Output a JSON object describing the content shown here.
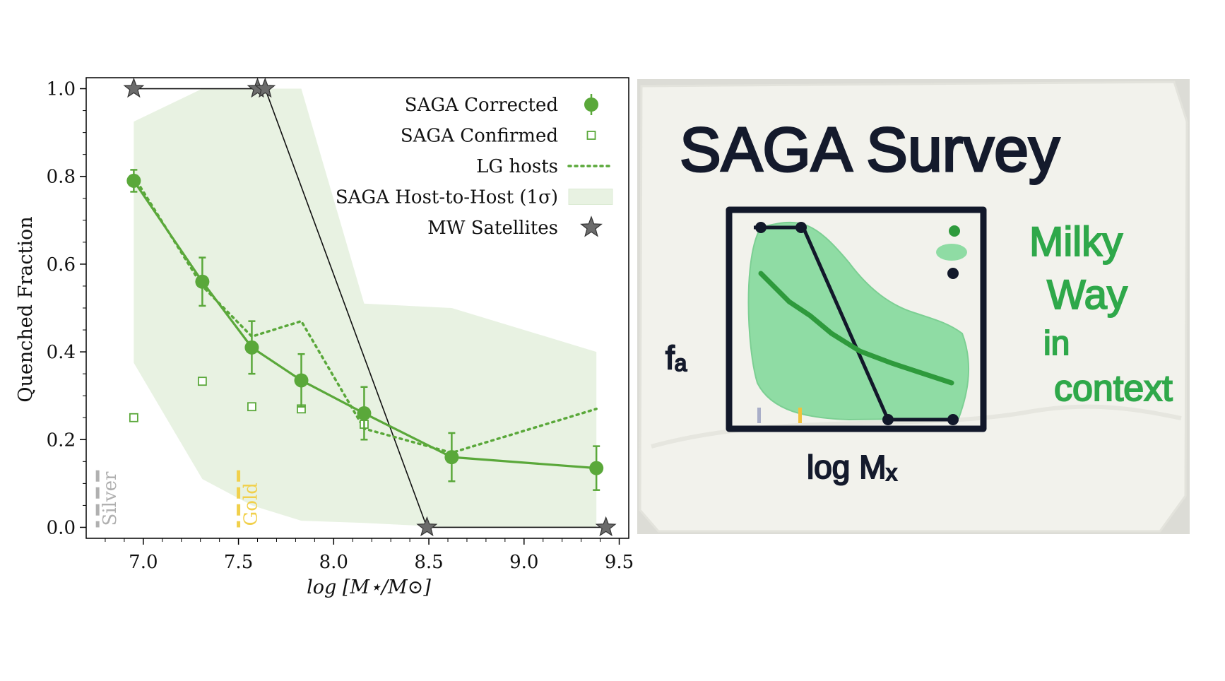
{
  "chart_data": {
    "type": "line",
    "xlabel": "log [M⋆/M⊙]",
    "ylabel": "Quenched Fraction",
    "xlim": [
      6.7,
      9.55
    ],
    "ylim": [
      -0.025,
      1.025
    ],
    "x_ticks": [
      "7.0",
      "7.5",
      "8.0",
      "8.5",
      "9.0",
      "9.5"
    ],
    "y_ticks": [
      "0.0",
      "0.2",
      "0.4",
      "0.6",
      "0.8",
      "1.0"
    ],
    "legend_position": "top-right",
    "series": [
      {
        "name": "SAGA Corrected",
        "style": "solid-with-errorbars",
        "color": "#5aa83a",
        "x": [
          6.95,
          7.31,
          7.57,
          7.83,
          8.16,
          8.62,
          9.38
        ],
        "y": [
          0.79,
          0.56,
          0.41,
          0.335,
          0.26,
          0.16,
          0.135
        ],
        "err": [
          0.025,
          0.055,
          0.06,
          0.06,
          0.06,
          0.055,
          0.05
        ]
      },
      {
        "name": "SAGA Confirmed",
        "style": "open-square",
        "color": "#5aa83a",
        "x": [
          6.95,
          7.31,
          7.57,
          7.83,
          8.16
        ],
        "y": [
          0.25,
          0.333,
          0.275,
          0.27,
          0.235
        ]
      },
      {
        "name": "LG hosts",
        "style": "dotted",
        "color": "#5aa83a",
        "x": [
          6.95,
          7.31,
          7.57,
          7.83,
          8.16,
          8.62,
          9.38
        ],
        "y": [
          0.8,
          0.55,
          0.435,
          0.47,
          0.225,
          0.17,
          0.27
        ]
      },
      {
        "name": "SAGA Host-to-Host (1σ)",
        "style": "band",
        "color": "#e8f2e2",
        "x": [
          6.95,
          7.31,
          7.57,
          7.83,
          8.16,
          8.62,
          9.38
        ],
        "upper": [
          0.925,
          1.0,
          1.0,
          1.0,
          0.51,
          0.5,
          0.4
        ],
        "lower": [
          0.375,
          0.11,
          0.05,
          0.015,
          0.01,
          0.0,
          0.0
        ]
      },
      {
        "name": "MW Satellites",
        "style": "star-step",
        "color": "#555555",
        "x": [
          6.95,
          7.6,
          7.64,
          8.49,
          9.43
        ],
        "y": [
          1.0,
          1.0,
          1.0,
          0.0,
          0.0
        ]
      }
    ],
    "annotations": [
      {
        "text": "Silver",
        "x": 6.76,
        "color": "#b0b0b0"
      },
      {
        "text": "Gold",
        "x": 7.5,
        "color": "#f1d04b"
      }
    ]
  },
  "photo": {
    "title_text": "SAGA Survey",
    "side_text": [
      "Milky",
      "Way",
      "in",
      "context"
    ],
    "ylabel_text": "fₐ",
    "xlabel_text": "log Mₓ"
  }
}
